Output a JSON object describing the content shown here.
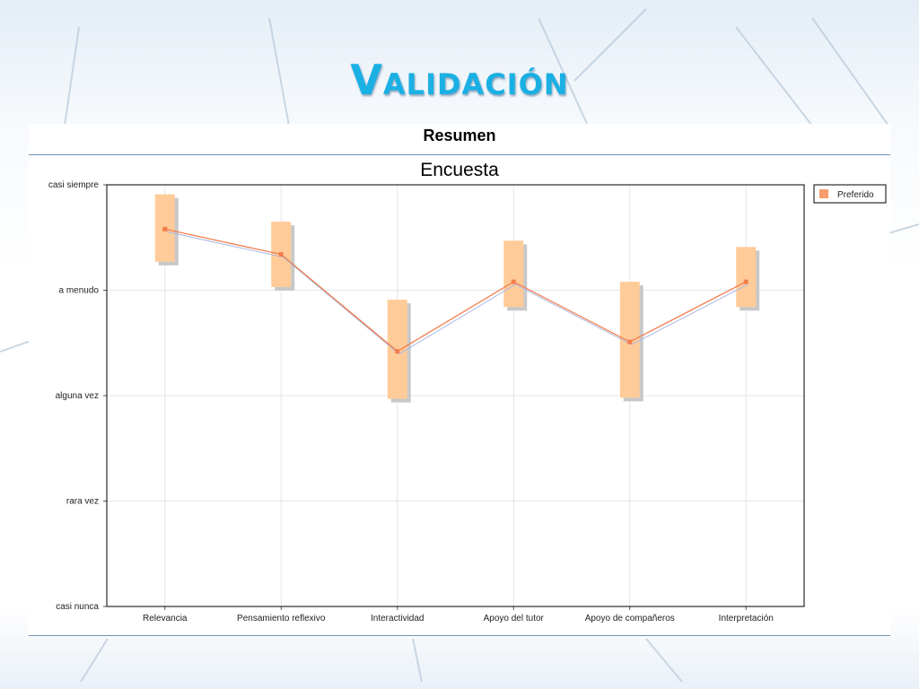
{
  "slide": {
    "title": "Validación"
  },
  "panel": {
    "heading": "Resumen"
  },
  "colors": {
    "title": "#1ab0e4",
    "box_fill": "#ffcc99",
    "box_shadow": "#c8c8c8",
    "line": "#f47c4c",
    "line_secondary": "#a9b8e0",
    "grid": "#e6e6e6",
    "legend_swatch": "#f89c6c"
  },
  "chart_data": {
    "type": "box",
    "title": "Encuesta",
    "y_ticks": [
      "casi nunca",
      "rara vez",
      "alguna vez",
      "a menudo",
      "casi siempre"
    ],
    "ylim": [
      1,
      5
    ],
    "categories": [
      "Relevancia",
      "Pensamiento reflexivo",
      "Interactividad",
      "Apoyo del tutor",
      "Apoyo de compañeros",
      "Interpretación"
    ],
    "series": [
      {
        "name": "Preferido",
        "values": [
          4.58,
          4.34,
          3.42,
          4.08,
          3.51,
          4.08
        ],
        "low": [
          4.27,
          4.03,
          2.97,
          3.84,
          2.98,
          3.84
        ],
        "high": [
          4.91,
          4.65,
          3.91,
          4.47,
          4.08,
          4.41
        ]
      }
    ],
    "legend": {
      "entries": [
        "Preferido"
      ],
      "position": "right"
    },
    "grid": true
  }
}
